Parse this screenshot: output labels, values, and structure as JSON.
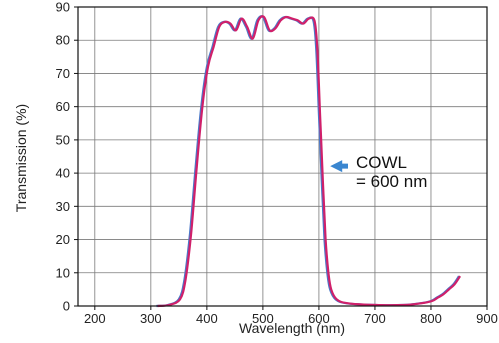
{
  "chart_data": {
    "type": "line",
    "xlabel": "Wavelength (nm)",
    "ylabel": "Transmission (%)",
    "xlim": [
      170,
      900
    ],
    "ylim": [
      0,
      90
    ],
    "x_ticks": [
      200,
      300,
      400,
      500,
      600,
      700,
      800,
      900
    ],
    "y_ticks": [
      0,
      10,
      20,
      30,
      40,
      50,
      60,
      70,
      80,
      90
    ],
    "grid": true,
    "legend": "none",
    "annotation": {
      "line1": "COWL",
      "line2": "= 600 nm",
      "arrow_target_wavelength": 613,
      "arrow_target_transmission": 43
    },
    "series": [
      {
        "color": "#4a78c8",
        "x": [
          310,
          330,
          350,
          360,
          370,
          380,
          390,
          400,
          410,
          420,
          430,
          440,
          450,
          460,
          470,
          480,
          490,
          500,
          510,
          520,
          530,
          540,
          550,
          560,
          570,
          580,
          590,
          595,
          600,
          605,
          610,
          615,
          620,
          630,
          650,
          700,
          750,
          780,
          800,
          810,
          820,
          830,
          840,
          850
        ],
        "y": [
          0,
          0.3,
          2,
          8,
          22,
          42,
          60,
          72,
          78,
          84,
          85.5,
          85,
          83,
          86.5,
          84,
          80.5,
          86,
          87,
          83,
          83.5,
          86,
          87,
          86.5,
          86,
          85,
          86.5,
          86,
          78,
          58,
          38,
          20,
          10,
          5,
          2,
          0.8,
          0.3,
          0.3,
          0.8,
          1.5,
          2.5,
          3.5,
          5,
          6.5,
          9
        ]
      },
      {
        "color": "#d0206a",
        "x": [
          312,
          332,
          352,
          362,
          372,
          382,
          392,
          402,
          412,
          422,
          432,
          442,
          452,
          462,
          472,
          482,
          492,
          502,
          512,
          522,
          532,
          542,
          552,
          562,
          572,
          582,
          592,
          597,
          602,
          607,
          612,
          617,
          622,
          632,
          652,
          702,
          752,
          782,
          802,
          812,
          822,
          832,
          842,
          852
        ],
        "y": [
          0,
          0.3,
          2,
          8,
          22,
          42,
          60,
          72,
          78,
          84,
          85.5,
          85,
          83,
          86.5,
          84,
          80.5,
          86,
          87,
          83,
          83.5,
          86,
          87,
          86.5,
          86,
          85,
          86.5,
          86,
          78,
          58,
          38,
          20,
          10,
          5,
          2,
          0.8,
          0.3,
          0.3,
          0.8,
          1.5,
          2.5,
          3.5,
          5,
          6.5,
          9
        ]
      }
    ]
  },
  "colors": {
    "grid": "#7a7a7a",
    "axis": "#111111",
    "arrow": "#3a86d0"
  }
}
